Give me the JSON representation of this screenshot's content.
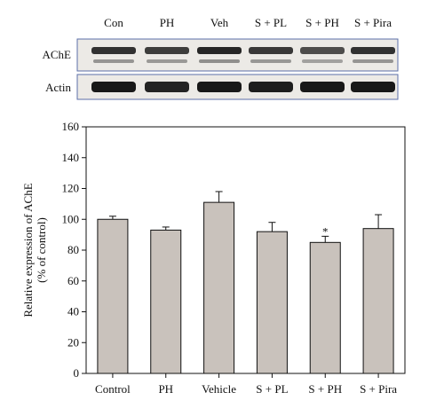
{
  "blot": {
    "lanes": [
      "Con",
      "PH",
      "Veh",
      "S + PL",
      "S + PH",
      "S + Pira"
    ],
    "rows": [
      {
        "label": "AChE",
        "band_strength": [
          0.85,
          0.8,
          0.9,
          0.82,
          0.72,
          0.85
        ]
      },
      {
        "label": "Actin",
        "band_strength": [
          0.95,
          0.9,
          0.95,
          0.93,
          0.95,
          0.95
        ]
      }
    ],
    "frame_color": "#5b6fa8"
  },
  "chart_data": {
    "type": "bar",
    "categories": [
      "Control",
      "PH",
      "Vehicle",
      "S + PL",
      "S + PH",
      "S + Pira"
    ],
    "values": [
      100,
      93,
      111,
      92,
      85,
      94
    ],
    "errors": [
      2,
      2,
      7,
      6,
      4,
      9
    ],
    "significance": [
      "",
      "",
      "",
      "",
      "*",
      ""
    ],
    "ylabel": "Relative expression of AChE",
    "ylabel_sub": "(% of control)",
    "ylim": [
      0,
      160
    ],
    "yticks": [
      0,
      20,
      40,
      60,
      80,
      100,
      120,
      140,
      160
    ],
    "bar_color": "#c9c2bc",
    "grid": false
  }
}
